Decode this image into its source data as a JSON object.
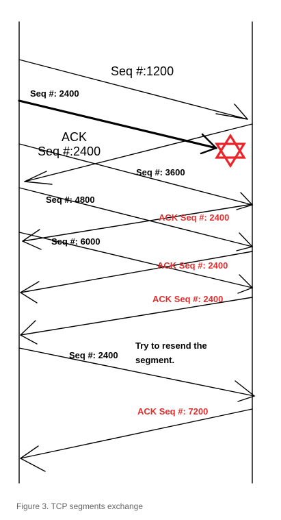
{
  "diagram": {
    "messages": {
      "m1": "Seq #:1200",
      "m2": "Seq #: 2400",
      "m3_line1": "ACK",
      "m3_line2": "Seq #:2400",
      "m4": "Seq #: 3600",
      "m5": "Seq #: 4800",
      "m6": "ACK Seq #: 2400",
      "m7": "Seq #: 6000",
      "m8": "ACK Seq #: 2400",
      "m9": "ACK Seq #: 2400",
      "m10": "Seq #: 2400",
      "m11": "ACK Seq #: 7200"
    },
    "note": {
      "line1": "Try to resend the",
      "line2": "segment."
    },
    "colors": {
      "line": "#000000",
      "ack_text": "#e03030",
      "lost_marker": "#e8252a",
      "caption": "#666666"
    },
    "icons": {
      "lost_marker": "star-of-david-icon"
    }
  },
  "caption": "Figure 3. TCP segments exchange"
}
